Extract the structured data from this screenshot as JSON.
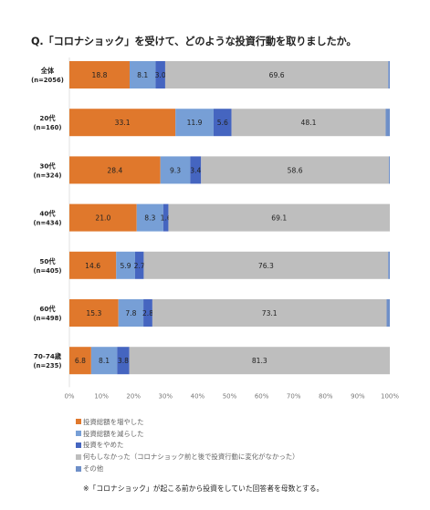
{
  "chart_data": {
    "type": "bar",
    "orientation": "horizontal",
    "stacked": true,
    "title": "Q.「コロナショック」を受けて、どのような投資行動を取りましたか。",
    "categories": [
      {
        "name": "全体",
        "n": "(n=2056)"
      },
      {
        "name": "20代",
        "n": "(n=160)"
      },
      {
        "name": "30代",
        "n": "(n=324)"
      },
      {
        "name": "40代",
        "n": "(n=434)"
      },
      {
        "name": "50代",
        "n": "(n=405)"
      },
      {
        "name": "60代",
        "n": "(n=498)"
      },
      {
        "name": "70-74歳",
        "n": "(n=235)"
      }
    ],
    "series": [
      {
        "name": "投資総額を増やした",
        "color": "#e0782c",
        "values": [
          18.8,
          33.1,
          28.4,
          21.0,
          14.6,
          15.3,
          6.8
        ],
        "labels": [
          "18.8",
          "33.1",
          "28.4",
          "21.0",
          "14.6",
          "15.3",
          "6.8"
        ]
      },
      {
        "name": "投資総額を減らした",
        "color": "#779fd6",
        "values": [
          8.1,
          11.9,
          9.3,
          8.3,
          5.9,
          7.8,
          8.1
        ],
        "labels": [
          "8.1",
          "11.9",
          "9.3",
          "8.3",
          "5.9",
          "7.8",
          "8.1"
        ]
      },
      {
        "name": "投資をやめた",
        "color": "#4565c0",
        "values": [
          3.0,
          5.6,
          3.4,
          1.6,
          2.7,
          2.8,
          3.8
        ],
        "labels": [
          "3.0",
          "5.6",
          "3.4",
          "1.6",
          "2.7",
          "2.8",
          "3.8"
        ]
      },
      {
        "name": "何もしなかった（コロナショック前と後で投資行動に変化がなかった）",
        "color": "#bebebe",
        "values": [
          69.6,
          48.1,
          58.6,
          69.1,
          76.3,
          73.1,
          81.3
        ],
        "labels": [
          "69.6",
          "48.1",
          "58.6",
          "69.1",
          "76.3",
          "73.1",
          "81.3"
        ]
      },
      {
        "name": "その他",
        "color": "#6e8fc8",
        "values": [
          0.5,
          1.3,
          0.3,
          0.0,
          0.5,
          1.0,
          0.0
        ],
        "labels": [
          "",
          "",
          "",
          "",
          "",
          "",
          ""
        ]
      }
    ],
    "xlim": [
      0,
      100
    ],
    "xticks": [
      "0%",
      "10%",
      "20%",
      "30%",
      "40%",
      "50%",
      "60%",
      "70%",
      "80%",
      "90%",
      "100%"
    ],
    "legend_position": "bottom-left",
    "grid": false
  },
  "footnote": "※「コロナショック」が起こる前から投資をしていた回答者を母数とする。"
}
